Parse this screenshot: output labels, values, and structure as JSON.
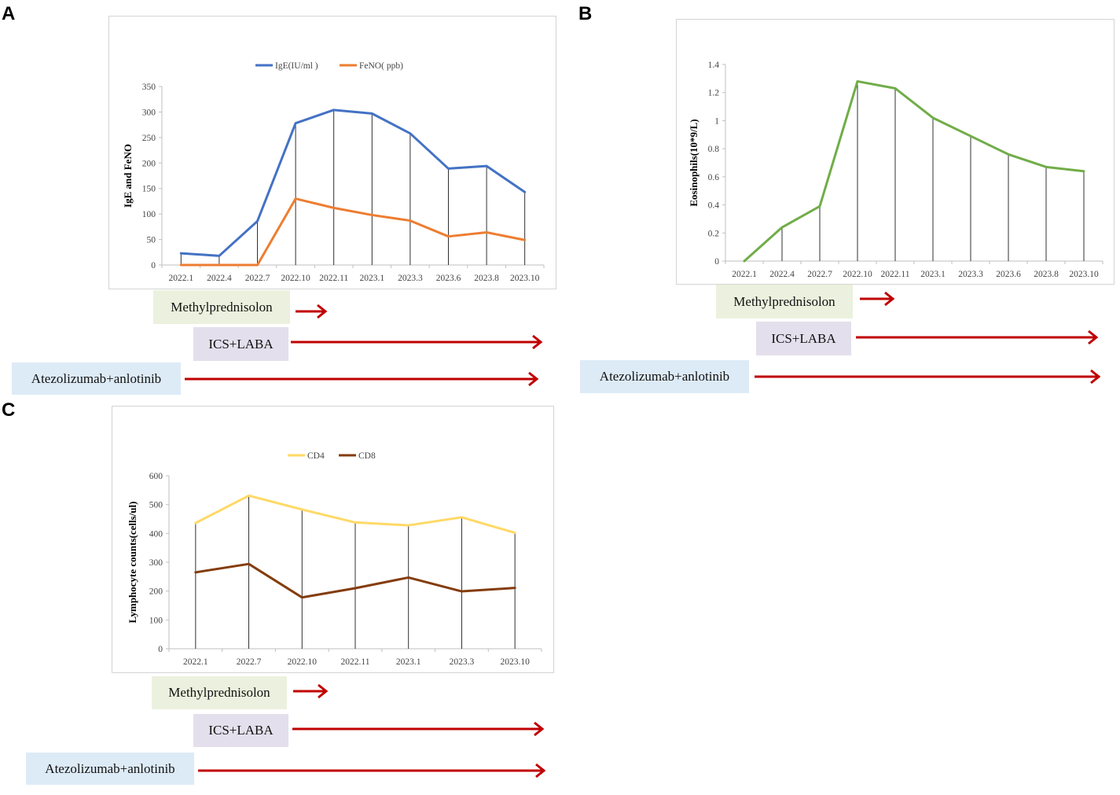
{
  "panels": {
    "A": {
      "letter": "A"
    },
    "B": {
      "letter": "B"
    },
    "C": {
      "letter": "C"
    }
  },
  "colors": {
    "ige": "#4472c4",
    "feno": "#ed7d31",
    "eos": "#70ad47",
    "cd4": "#ffd966",
    "cd8": "#843c0c",
    "arrow": "#c00000",
    "methyl_bg": "#ebf1de",
    "ics_bg": "#e4dfec",
    "atezo_bg": "#ddebf7"
  },
  "drugs": {
    "methyl": "Methylprednisolon",
    "ics": "ICS+LABA",
    "atezo": "Atezolizumab+anlotinib"
  },
  "chart_data": [
    {
      "id": "A",
      "type": "line",
      "title": "",
      "xlabel": "",
      "ylabel": "IgE and FeNO",
      "categories": [
        "2022.1",
        "2022.4",
        "2022.7",
        "2022.10",
        "2022.11",
        "2023.1",
        "2023.3",
        "2023.6",
        "2023.8",
        "2023.10"
      ],
      "series": [
        {
          "name": "IgE(IU/ml )",
          "color": "#4472c4",
          "values": [
            23,
            18,
            86,
            278,
            304,
            297,
            258,
            189,
            194,
            143
          ]
        },
        {
          "name": "FeNO( ppb)",
          "color": "#ed7d31",
          "values": [
            0,
            0,
            0,
            130,
            112,
            98,
            87,
            56,
            64,
            49
          ]
        }
      ],
      "ylim": [
        0,
        350
      ],
      "yticks": [
        0,
        50,
        100,
        150,
        200,
        250,
        300,
        350
      ],
      "legend": "top-center",
      "drop_lines": true
    },
    {
      "id": "B",
      "type": "line",
      "title": "",
      "xlabel": "",
      "ylabel": "Eosinophils(10*9/L)",
      "categories": [
        "2022.1",
        "2022.4",
        "2022.7",
        "2022.10",
        "2022.11",
        "2023.1",
        "2023.3",
        "2023.6",
        "2023.8",
        "2023.10"
      ],
      "series": [
        {
          "name": "Eosinophils",
          "color": "#70ad47",
          "values": [
            0,
            0.24,
            0.39,
            1.28,
            1.23,
            1.02,
            0.89,
            0.76,
            0.67,
            0.64
          ]
        }
      ],
      "ylim": [
        0,
        1.4
      ],
      "yticks": [
        "0",
        "0.2",
        "0.4",
        "0.6",
        "0.8",
        "1",
        "1.2",
        "1.4"
      ],
      "legend": "none",
      "drop_lines": true
    },
    {
      "id": "C",
      "type": "line",
      "title": "",
      "xlabel": "",
      "ylabel": "Lymphocyte counts(cells/ul)",
      "categories": [
        "2022.1",
        "2022.7",
        "2022.10",
        "2022.11",
        "2023.1",
        "2023.3",
        "2023.10"
      ],
      "series": [
        {
          "name": "CD4",
          "color": "#ffd966",
          "values": [
            436,
            531,
            483,
            438,
            428,
            456,
            402
          ]
        },
        {
          "name": "CD8",
          "color": "#843c0c",
          "values": [
            265,
            294,
            178,
            210,
            247,
            199,
            211
          ]
        }
      ],
      "ylim": [
        0,
        600
      ],
      "yticks": [
        0,
        100,
        200,
        300,
        400,
        500,
        600
      ],
      "legend": "top-center",
      "drop_lines": true
    }
  ]
}
